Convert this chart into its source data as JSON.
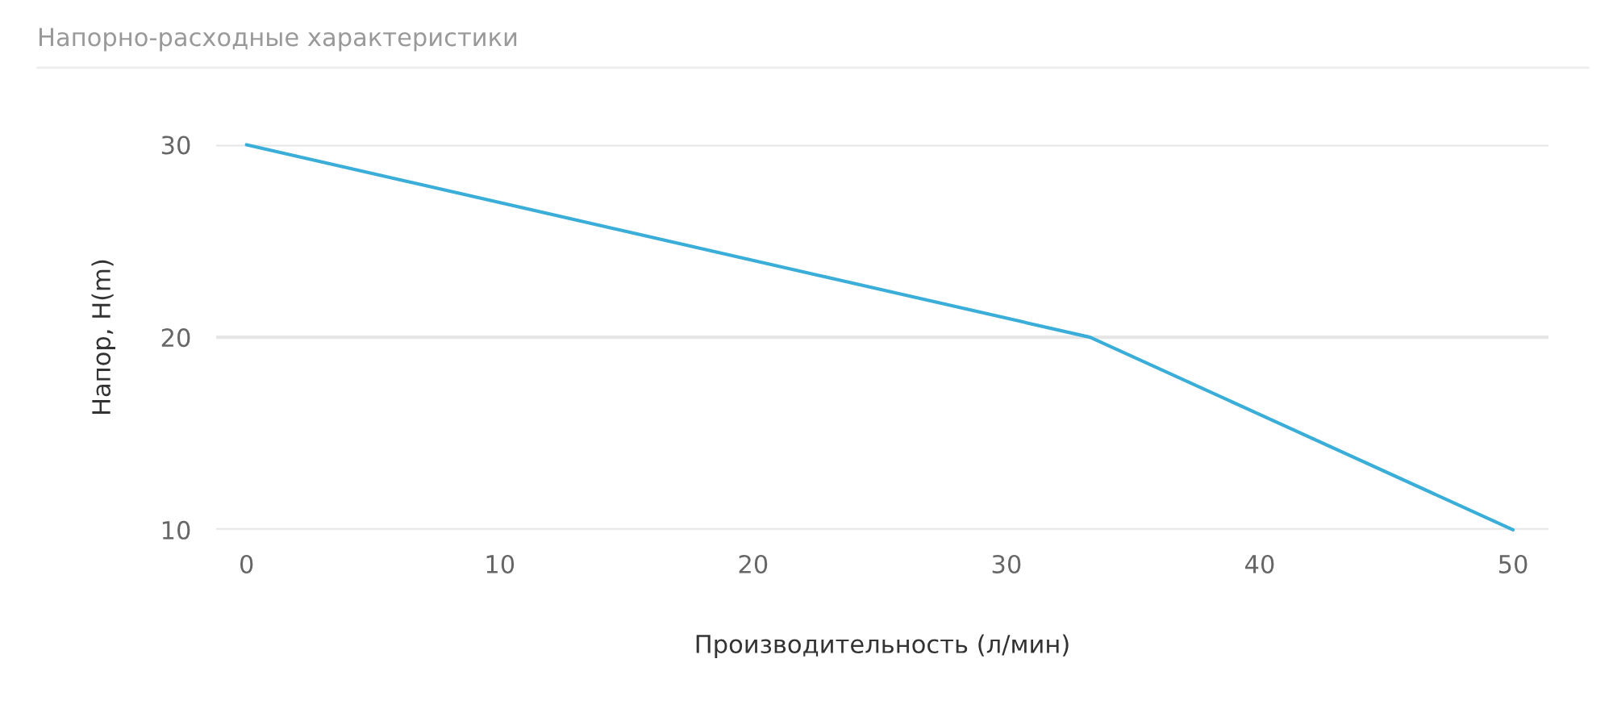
{
  "chart_data": {
    "type": "line",
    "title": "Напорно-расходные характеристики",
    "xlabel": "Производительность (л/мин)",
    "ylabel": "Напор, H(m)",
    "x": [
      0,
      33.3,
      50
    ],
    "series": [
      {
        "color": "#3aaed8",
        "values": [
          30,
          20,
          10
        ]
      }
    ],
    "xlim": [
      -1.2,
      51.4
    ],
    "xticks": [
      0,
      10,
      20,
      30,
      40,
      50
    ],
    "ylim": [
      10,
      30
    ],
    "yticks": [
      10,
      20,
      30
    ],
    "grid": "y",
    "legend": false,
    "marker": "none",
    "line_style": "solid"
  }
}
